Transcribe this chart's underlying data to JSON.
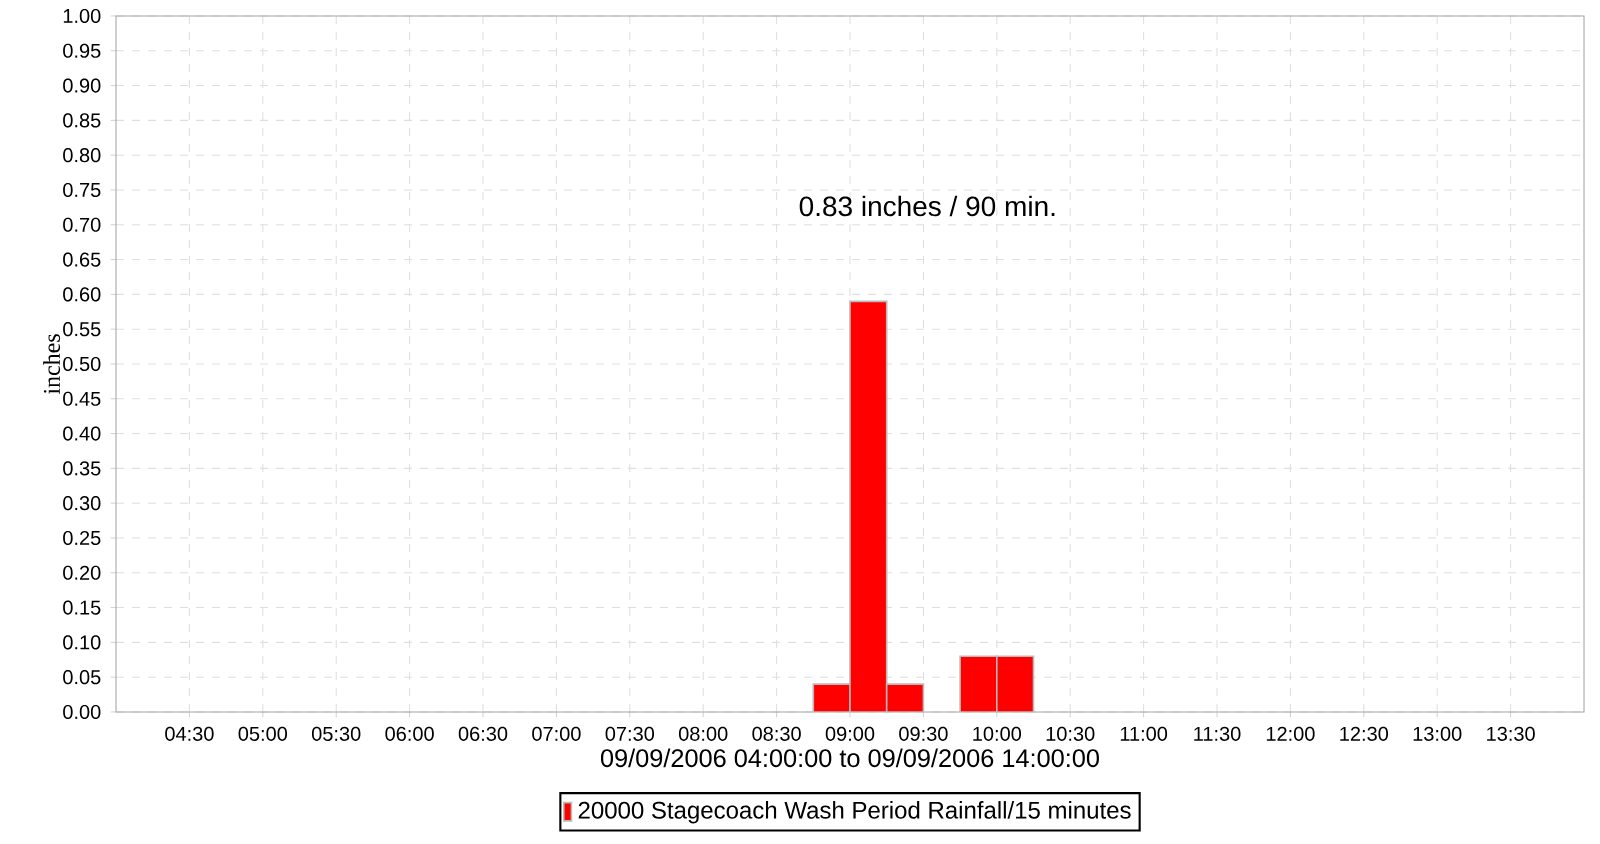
{
  "chart_data": {
    "type": "bar",
    "xlabel": "09/09/2006 04:00:00 to 09/09/2006 14:00:00",
    "ylabel": "inches",
    "annotations": [
      "0.83 inches / 90 min."
    ],
    "series": [
      {
        "name": "20000 Stagecoach Wash Period Rainfall/15 minutes",
        "color": "#ff0000",
        "x": [
          8.875,
          9.125,
          9.375,
          9.875,
          10.125
        ],
        "values": [
          0.04,
          0.59,
          0.04,
          0.08,
          0.08
        ]
      }
    ],
    "xlim": [
      4,
      14
    ],
    "xticks": [
      {
        "value": 4.5,
        "label": "04:30"
      },
      {
        "value": 5,
        "label": "05:00"
      },
      {
        "value": 5.5,
        "label": "05:30"
      },
      {
        "value": 6,
        "label": "06:00"
      },
      {
        "value": 6.5,
        "label": "06:30"
      },
      {
        "value": 7,
        "label": "07:00"
      },
      {
        "value": 7.5,
        "label": "07:30"
      },
      {
        "value": 8,
        "label": "08:00"
      },
      {
        "value": 8.5,
        "label": "08:30"
      },
      {
        "value": 9,
        "label": "09:00"
      },
      {
        "value": 9.5,
        "label": "09:30"
      },
      {
        "value": 10,
        "label": "10:00"
      },
      {
        "value": 10.5,
        "label": "10:30"
      },
      {
        "value": 11,
        "label": "11:00"
      },
      {
        "value": 11.5,
        "label": "11:30"
      },
      {
        "value": 12,
        "label": "12:00"
      },
      {
        "value": 12.5,
        "label": "12:30"
      },
      {
        "value": 13,
        "label": "13:00"
      },
      {
        "value": 13.5,
        "label": "13:30"
      }
    ],
    "ylim": [
      0,
      1
    ],
    "yticks": [
      {
        "value": 0,
        "label": "0.00"
      },
      {
        "value": 0.05,
        "label": "0.05"
      },
      {
        "value": 0.1,
        "label": "0.10"
      },
      {
        "value": 0.15,
        "label": "0.15"
      },
      {
        "value": 0.2,
        "label": "0.20"
      },
      {
        "value": 0.25,
        "label": "0.25"
      },
      {
        "value": 0.3,
        "label": "0.30"
      },
      {
        "value": 0.35,
        "label": "0.35"
      },
      {
        "value": 0.4,
        "label": "0.40"
      },
      {
        "value": 0.45,
        "label": "0.45"
      },
      {
        "value": 0.5,
        "label": "0.50"
      },
      {
        "value": 0.55,
        "label": "0.55"
      },
      {
        "value": 0.6,
        "label": "0.60"
      },
      {
        "value": 0.65,
        "label": "0.65"
      },
      {
        "value": 0.7,
        "label": "0.70"
      },
      {
        "value": 0.75,
        "label": "0.75"
      },
      {
        "value": 0.8,
        "label": "0.80"
      },
      {
        "value": 0.85,
        "label": "0.85"
      },
      {
        "value": 0.9,
        "label": "0.90"
      },
      {
        "value": 0.95,
        "label": "0.95"
      },
      {
        "value": 1,
        "label": "1.00"
      }
    ],
    "grid": true,
    "legend": "bottom"
  }
}
